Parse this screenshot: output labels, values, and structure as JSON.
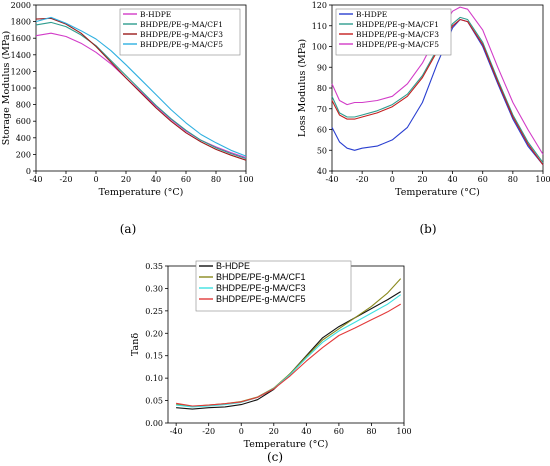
{
  "chart_data": [
    {
      "type": "line",
      "panel_label": "(a)",
      "xlabel": "Temperature (°C)",
      "ylabel": "Storage Modulus (MPa)",
      "xlim": [
        -40,
        100
      ],
      "ylim": [
        0,
        2000
      ],
      "xticks": [
        -40,
        -20,
        0,
        20,
        40,
        60,
        80,
        100
      ],
      "yticks": [
        0,
        200,
        400,
        600,
        800,
        1000,
        1200,
        1400,
        1600,
        1800,
        2000
      ],
      "legend": "top-right",
      "series": [
        {
          "name": "B-HDPE",
          "color": "#d23cc8",
          "x": [
            -40,
            -30,
            -20,
            -10,
            0,
            10,
            20,
            30,
            40,
            50,
            60,
            70,
            80,
            90,
            100
          ],
          "y": [
            1630,
            1660,
            1620,
            1540,
            1430,
            1290,
            1120,
            950,
            780,
            620,
            480,
            370,
            290,
            220,
            160
          ]
        },
        {
          "name": "BHDPE/PE-g-MA/CF1",
          "color": "#2f9c8e",
          "x": [
            -40,
            -30,
            -20,
            -10,
            0,
            10,
            20,
            30,
            40,
            50,
            60,
            70,
            80,
            90,
            100
          ],
          "y": [
            1760,
            1790,
            1740,
            1640,
            1510,
            1330,
            1150,
            970,
            790,
            630,
            490,
            370,
            280,
            210,
            150
          ]
        },
        {
          "name": "BHDPE/PE-g-MA/CF3",
          "color": "#9b1c1c",
          "x": [
            -40,
            -30,
            -20,
            -10,
            0,
            10,
            20,
            30,
            40,
            50,
            60,
            70,
            80,
            90,
            100
          ],
          "y": [
            1830,
            1840,
            1770,
            1660,
            1500,
            1310,
            1120,
            940,
            760,
            600,
            460,
            350,
            260,
            190,
            130
          ]
        },
        {
          "name": "BHDPE/PE-g-MA/CF5",
          "color": "#2fb0e0",
          "x": [
            -40,
            -30,
            -20,
            -10,
            0,
            10,
            20,
            30,
            40,
            50,
            60,
            70,
            80,
            90,
            100
          ],
          "y": [
            1800,
            1850,
            1780,
            1690,
            1590,
            1450,
            1280,
            1100,
            920,
            740,
            580,
            440,
            340,
            250,
            180
          ]
        }
      ]
    },
    {
      "type": "line",
      "panel_label": "(b)",
      "xlabel": "Temperature (°C)",
      "ylabel": "Loss Modulus (MPa)",
      "xlim": [
        -40,
        100
      ],
      "ylim": [
        40,
        120
      ],
      "xticks": [
        -40,
        -20,
        0,
        20,
        40,
        60,
        80,
        100
      ],
      "yticks": [
        40,
        50,
        60,
        70,
        80,
        90,
        100,
        110,
        120
      ],
      "legend": "top-left",
      "series": [
        {
          "name": "B-HDPE",
          "color": "#2a3fd0",
          "x": [
            -40,
            -35,
            -30,
            -25,
            -20,
            -10,
            0,
            10,
            20,
            30,
            40,
            45,
            50,
            60,
            70,
            80,
            90,
            100
          ],
          "y": [
            61,
            54,
            51,
            50,
            51,
            52,
            55,
            61,
            73,
            92,
            109,
            113,
            112,
            100,
            82,
            65,
            52,
            43
          ]
        },
        {
          "name": "BHDPE/PE-g-MA/CF1",
          "color": "#2f9c8e",
          "x": [
            -40,
            -35,
            -30,
            -25,
            -20,
            -10,
            0,
            10,
            20,
            30,
            40,
            45,
            50,
            60,
            70,
            80,
            90,
            100
          ],
          "y": [
            76,
            68,
            66,
            66,
            67,
            69,
            72,
            77,
            86,
            99,
            111,
            114,
            113,
            102,
            84,
            67,
            54,
            44
          ]
        },
        {
          "name": "BHDPE/PE-g-MA/CF3",
          "color": "#c41e1e",
          "x": [
            -40,
            -35,
            -30,
            -25,
            -20,
            -10,
            0,
            10,
            20,
            30,
            40,
            45,
            50,
            60,
            70,
            80,
            90,
            100
          ],
          "y": [
            74,
            67,
            65,
            65,
            66,
            68,
            71,
            76,
            85,
            98,
            110,
            113,
            112,
            101,
            83,
            66,
            53,
            43
          ]
        },
        {
          "name": "BHDPE/PE-g-MA/CF5",
          "color": "#d23cc8",
          "x": [
            -40,
            -35,
            -30,
            -25,
            -20,
            -10,
            0,
            10,
            20,
            30,
            40,
            45,
            50,
            60,
            70,
            80,
            90,
            100
          ],
          "y": [
            82,
            74,
            72,
            73,
            73,
            74,
            76,
            82,
            92,
            106,
            117,
            119,
            118,
            108,
            90,
            73,
            60,
            48
          ]
        }
      ]
    },
    {
      "type": "line",
      "panel_label": "(c)",
      "xlabel": "Temperature (°C)",
      "ylabel": "Tanδ",
      "xlim": [
        -45,
        100
      ],
      "ylim": [
        0.0,
        0.35
      ],
      "xticks": [
        -40,
        -20,
        0,
        20,
        40,
        60,
        80,
        100
      ],
      "yticks": [
        0.0,
        0.05,
        0.1,
        0.15,
        0.2,
        0.25,
        0.3,
        0.35
      ],
      "legend": "top-left",
      "series": [
        {
          "name": "B-HDPE",
          "color": "#111111",
          "x": [
            -40,
            -30,
            -20,
            -10,
            0,
            10,
            20,
            30,
            40,
            50,
            60,
            70,
            80,
            90,
            98
          ],
          "y": [
            0.034,
            0.031,
            0.034,
            0.036,
            0.041,
            0.052,
            0.075,
            0.11,
            0.15,
            0.19,
            0.215,
            0.235,
            0.255,
            0.275,
            0.293
          ]
        },
        {
          "name": "BHDPE/PE-g-MA/CF1",
          "color": "#8a8a1e",
          "x": [
            -40,
            -30,
            -20,
            -10,
            0,
            10,
            20,
            30,
            40,
            50,
            60,
            70,
            80,
            90,
            98
          ],
          "y": [
            0.042,
            0.037,
            0.04,
            0.043,
            0.048,
            0.058,
            0.078,
            0.11,
            0.148,
            0.185,
            0.21,
            0.235,
            0.26,
            0.29,
            0.322
          ]
        },
        {
          "name": "BHDPE/PE-g-MA/CF3",
          "color": "#3ee0e0",
          "x": [
            -40,
            -30,
            -20,
            -10,
            0,
            10,
            20,
            30,
            40,
            50,
            60,
            70,
            80,
            90,
            98
          ],
          "y": [
            0.04,
            0.036,
            0.038,
            0.041,
            0.046,
            0.057,
            0.077,
            0.108,
            0.145,
            0.18,
            0.205,
            0.225,
            0.245,
            0.265,
            0.286
          ]
        },
        {
          "name": "BHDPE/PE-g-MA/CF5",
          "color": "#e23a3a",
          "x": [
            -40,
            -30,
            -20,
            -10,
            0,
            10,
            20,
            30,
            40,
            50,
            60,
            70,
            80,
            90,
            98
          ],
          "y": [
            0.044,
            0.038,
            0.04,
            0.043,
            0.047,
            0.057,
            0.076,
            0.105,
            0.138,
            0.168,
            0.195,
            0.212,
            0.23,
            0.248,
            0.265
          ]
        }
      ]
    }
  ]
}
